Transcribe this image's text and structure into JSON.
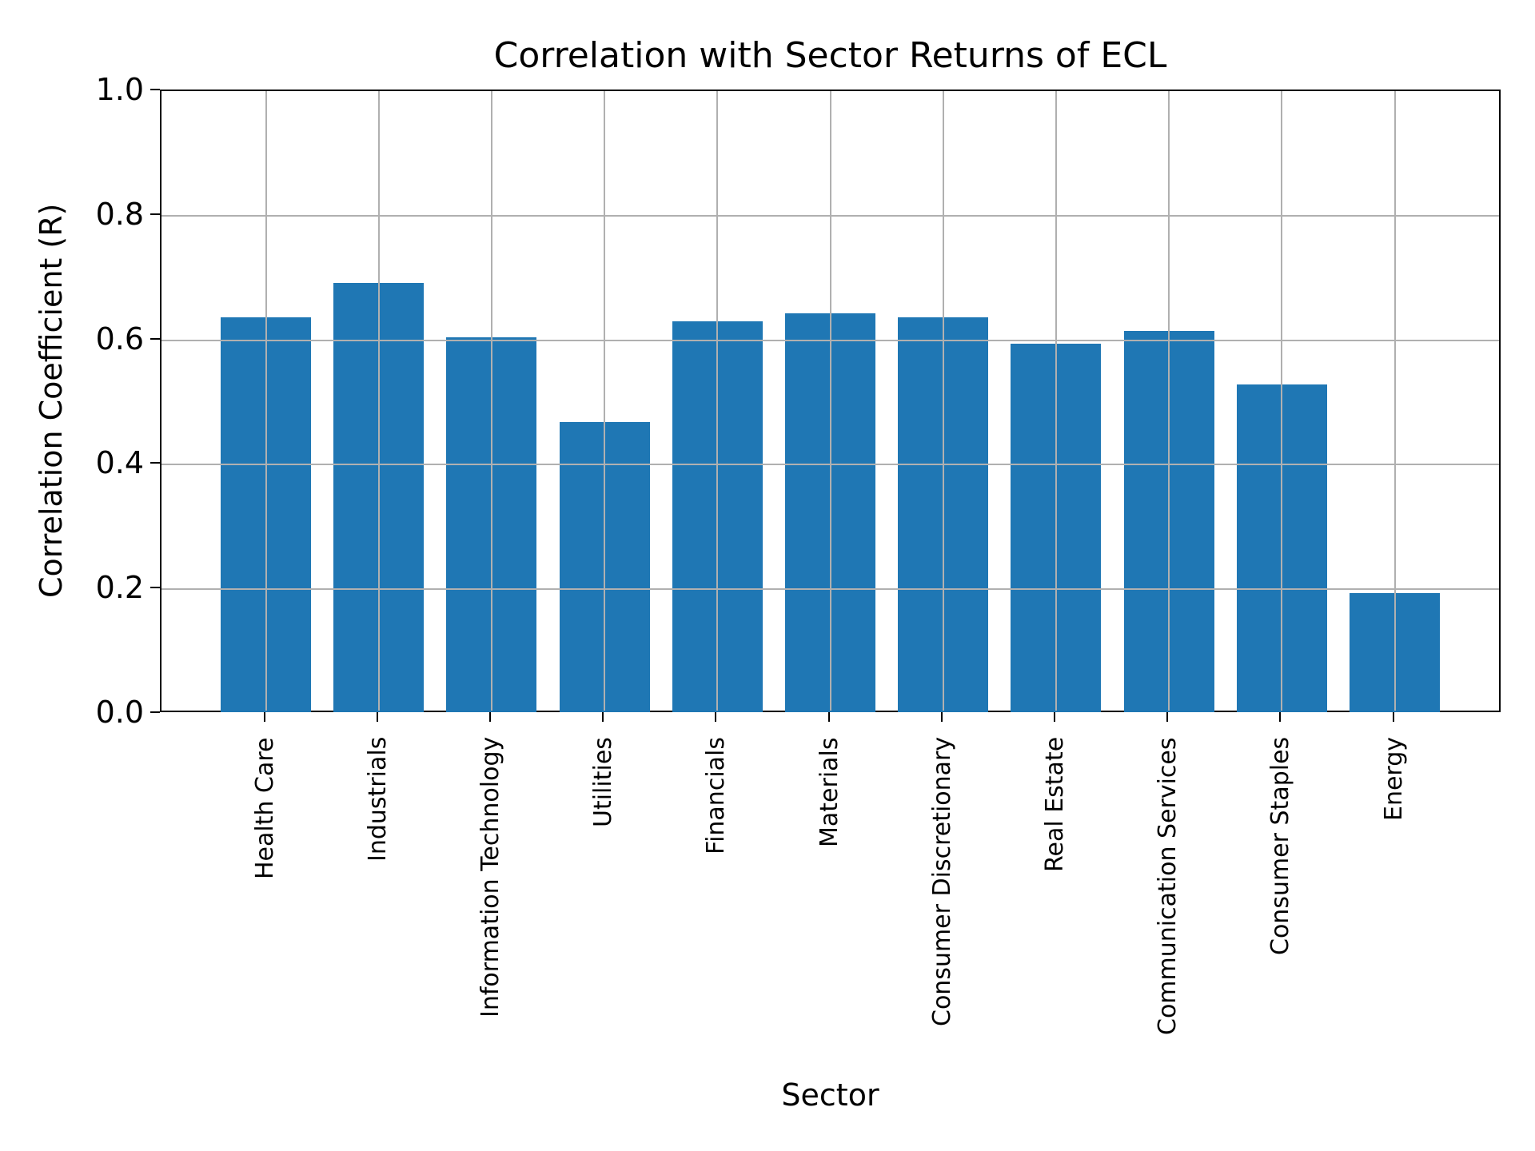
{
  "chart_data": {
    "type": "bar",
    "title": "Correlation with Sector Returns of ECL",
    "xlabel": "Sector",
    "ylabel": "Correlation Coefficient (R)",
    "categories": [
      "Health Care",
      "Industrials",
      "Information Technology",
      "Utilities",
      "Financials",
      "Materials",
      "Consumer Discretionary",
      "Real Estate",
      "Communication Services",
      "Consumer Staples",
      "Energy"
    ],
    "values": [
      0.637,
      0.692,
      0.605,
      0.469,
      0.63,
      0.643,
      0.637,
      0.594,
      0.615,
      0.529,
      0.194
    ],
    "ylim": [
      0.0,
      1.0
    ],
    "yticks": [
      "0.0",
      "0.2",
      "0.4",
      "0.6",
      "0.8",
      "1.0"
    ],
    "grid": true,
    "legend": null,
    "bar_color": "#1f77b4",
    "grid_color": "#b0b0b0",
    "xtick_rotation": 90
  }
}
